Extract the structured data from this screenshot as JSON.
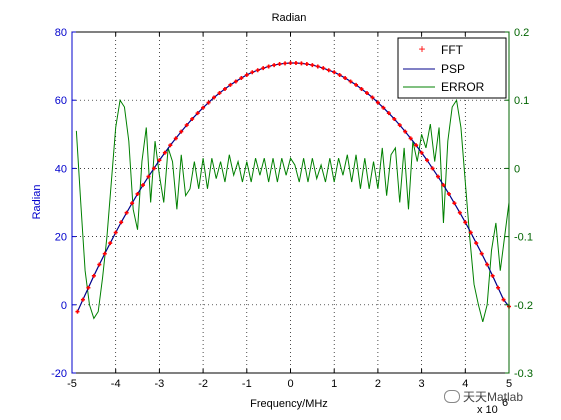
{
  "chart_data": {
    "type": "line",
    "title": "Radian",
    "xlabel": "Frequency/MHz",
    "ylabel_left": "Radian",
    "x_exponent_label": "x 10",
    "xlim": [
      -5,
      5
    ],
    "ylim_left": [
      -20,
      80
    ],
    "ylim_right": [
      -0.3,
      0.2
    ],
    "xticks": [
      -5,
      -4,
      -3,
      -2,
      -1,
      0,
      1,
      2,
      3,
      4,
      5
    ],
    "yticks_left": [
      -20,
      0,
      20,
      40,
      60,
      80
    ],
    "yticks_right": [
      -0.3,
      -0.2,
      -0.1,
      0,
      0.1,
      0.2
    ],
    "grid": true,
    "legend_position": "top-right",
    "colors": {
      "fft": "#ff0000",
      "psp": "#00008b",
      "error": "#008000"
    },
    "series": [
      {
        "name": "FFT",
        "axis": "left",
        "style": "markers",
        "x": [
          -4.875,
          -4.75,
          -4.625,
          -4.5,
          -4.375,
          -4.25,
          -4.125,
          -4.0,
          -3.875,
          -3.75,
          -3.625,
          -3.5,
          -3.375,
          -3.25,
          -3.125,
          -3.0,
          -2.875,
          -2.75,
          -2.625,
          -2.5,
          -2.375,
          -2.25,
          -2.125,
          -2.0,
          -1.875,
          -1.75,
          -1.625,
          -1.5,
          -1.375,
          -1.25,
          -1.125,
          -1.0,
          -0.875,
          -0.75,
          -0.625,
          -0.5,
          -0.375,
          -0.25,
          -0.125,
          0.0,
          0.125,
          0.25,
          0.375,
          0.5,
          0.625,
          0.75,
          0.875,
          1.0,
          1.125,
          1.25,
          1.375,
          1.5,
          1.625,
          1.75,
          1.875,
          2.0,
          2.125,
          2.25,
          2.375,
          2.5,
          2.625,
          2.75,
          2.875,
          3.0,
          3.125,
          3.25,
          3.375,
          3.5,
          3.625,
          3.75,
          3.875,
          4.0,
          4.125,
          4.25,
          4.375,
          4.5,
          4.625,
          4.75,
          4.875,
          5.0
        ],
        "y": [
          -2.0,
          1.5,
          5.0,
          8.5,
          11.8,
          15.0,
          18.1,
          21.2,
          24.2,
          27.0,
          29.8,
          32.5,
          35.1,
          37.6,
          40.0,
          42.4,
          44.6,
          46.8,
          48.8,
          50.8,
          52.7,
          54.5,
          56.2,
          57.8,
          59.3,
          60.8,
          62.1,
          63.3,
          64.5,
          65.5,
          66.5,
          67.4,
          68.2,
          68.8,
          69.4,
          69.9,
          70.3,
          70.6,
          70.8,
          70.9,
          70.9,
          70.8,
          70.6,
          70.3,
          69.9,
          69.4,
          68.8,
          68.2,
          67.4,
          66.5,
          65.5,
          64.5,
          63.3,
          62.1,
          60.8,
          59.3,
          57.8,
          56.2,
          54.5,
          52.7,
          50.8,
          48.8,
          46.8,
          44.6,
          42.4,
          40.0,
          37.6,
          35.1,
          32.5,
          29.8,
          27.0,
          24.2,
          21.2,
          18.1,
          15.0,
          11.8,
          8.5,
          5.0,
          1.5,
          -0.5
        ]
      },
      {
        "name": "PSP",
        "axis": "left",
        "style": "line",
        "x": [
          -4.875,
          -4.75,
          -4.625,
          -4.5,
          -4.375,
          -4.25,
          -4.125,
          -4.0,
          -3.875,
          -3.75,
          -3.625,
          -3.5,
          -3.375,
          -3.25,
          -3.125,
          -3.0,
          -2.875,
          -2.75,
          -2.625,
          -2.5,
          -2.375,
          -2.25,
          -2.125,
          -2.0,
          -1.875,
          -1.75,
          -1.625,
          -1.5,
          -1.375,
          -1.25,
          -1.125,
          -1.0,
          -0.875,
          -0.75,
          -0.625,
          -0.5,
          -0.375,
          -0.25,
          -0.125,
          0.0,
          0.125,
          0.25,
          0.375,
          0.5,
          0.625,
          0.75,
          0.875,
          1.0,
          1.125,
          1.25,
          1.375,
          1.5,
          1.625,
          1.75,
          1.875,
          2.0,
          2.125,
          2.25,
          2.375,
          2.5,
          2.625,
          2.75,
          2.875,
          3.0,
          3.125,
          3.25,
          3.375,
          3.5,
          3.625,
          3.75,
          3.875,
          4.0,
          4.125,
          4.25,
          4.375,
          4.5,
          4.625,
          4.75,
          4.875,
          5.0
        ],
        "y": [
          -2.0,
          1.5,
          5.0,
          8.5,
          11.8,
          15.0,
          18.1,
          21.2,
          24.2,
          27.0,
          29.8,
          32.5,
          35.1,
          37.6,
          40.0,
          42.4,
          44.6,
          46.8,
          48.8,
          50.8,
          52.7,
          54.5,
          56.2,
          57.8,
          59.3,
          60.8,
          62.1,
          63.3,
          64.5,
          65.5,
          66.5,
          67.4,
          68.2,
          68.8,
          69.4,
          69.9,
          70.3,
          70.6,
          70.8,
          70.9,
          70.9,
          70.8,
          70.6,
          70.3,
          69.9,
          69.4,
          68.8,
          68.2,
          67.4,
          66.5,
          65.5,
          64.5,
          63.3,
          62.1,
          60.8,
          59.3,
          57.8,
          56.2,
          54.5,
          52.7,
          50.8,
          48.8,
          46.8,
          44.6,
          42.4,
          40.0,
          37.6,
          35.1,
          32.5,
          29.8,
          27.0,
          24.2,
          21.2,
          18.1,
          15.0,
          11.8,
          8.5,
          5.0,
          1.5,
          -0.5
        ]
      },
      {
        "name": "ERROR",
        "axis": "right",
        "style": "line",
        "x": [
          -4.9,
          -4.8,
          -4.7,
          -4.6,
          -4.5,
          -4.4,
          -4.3,
          -4.2,
          -4.1,
          -4.0,
          -3.9,
          -3.8,
          -3.7,
          -3.6,
          -3.5,
          -3.4,
          -3.3,
          -3.2,
          -3.1,
          -3.0,
          -2.9,
          -2.8,
          -2.7,
          -2.6,
          -2.5,
          -2.4,
          -2.3,
          -2.2,
          -2.1,
          -2.0,
          -1.9,
          -1.8,
          -1.7,
          -1.6,
          -1.5,
          -1.4,
          -1.3,
          -1.2,
          -1.1,
          -1.0,
          -0.9,
          -0.8,
          -0.7,
          -0.6,
          -0.5,
          -0.4,
          -0.3,
          -0.2,
          -0.1,
          0.0,
          0.1,
          0.2,
          0.3,
          0.4,
          0.5,
          0.6,
          0.7,
          0.8,
          0.9,
          1.0,
          1.1,
          1.2,
          1.3,
          1.4,
          1.5,
          1.6,
          1.7,
          1.8,
          1.9,
          2.0,
          2.1,
          2.2,
          2.3,
          2.4,
          2.5,
          2.6,
          2.7,
          2.8,
          2.9,
          3.0,
          3.1,
          3.2,
          3.3,
          3.4,
          3.5,
          3.6,
          3.7,
          3.8,
          3.9,
          4.0,
          4.1,
          4.2,
          4.3,
          4.4,
          4.5,
          4.6,
          4.7,
          4.8,
          4.9,
          5.0
        ],
        "y": [
          0.055,
          -0.05,
          -0.15,
          -0.2,
          -0.22,
          -0.21,
          -0.16,
          -0.1,
          -0.02,
          0.06,
          0.1,
          0.09,
          0.04,
          -0.06,
          -0.09,
          0.01,
          0.06,
          -0.05,
          0.04,
          -0.01,
          -0.05,
          0.03,
          0.01,
          -0.06,
          0.02,
          -0.04,
          -0.03,
          0.01,
          -0.03,
          0.015,
          -0.03,
          0.015,
          -0.015,
          0.01,
          -0.02,
          0.02,
          -0.01,
          0.01,
          -0.02,
          0.01,
          -0.02,
          0.015,
          -0.01,
          0.015,
          -0.02,
          0.015,
          -0.02,
          0.015,
          -0.01,
          0.015,
          0.005,
          -0.02,
          0.015,
          -0.02,
          0.015,
          -0.015,
          0.005,
          -0.02,
          0.015,
          -0.02,
          0.015,
          -0.01,
          0.02,
          -0.02,
          0.02,
          -0.03,
          0.015,
          -0.03,
          0.01,
          -0.03,
          0.03,
          -0.04,
          0.02,
          0.03,
          -0.05,
          0.03,
          -0.06,
          0.04,
          0.01,
          0.05,
          0.03,
          0.065,
          0.01,
          0.06,
          -0.08,
          0.04,
          0.09,
          0.1,
          0.06,
          -0.02,
          -0.1,
          -0.17,
          -0.2,
          -0.225,
          -0.2,
          -0.12,
          -0.08,
          -0.15,
          -0.1,
          -0.05
        ]
      }
    ]
  },
  "watermark_text": "天天Matlab",
  "x_exponent_power": "6"
}
